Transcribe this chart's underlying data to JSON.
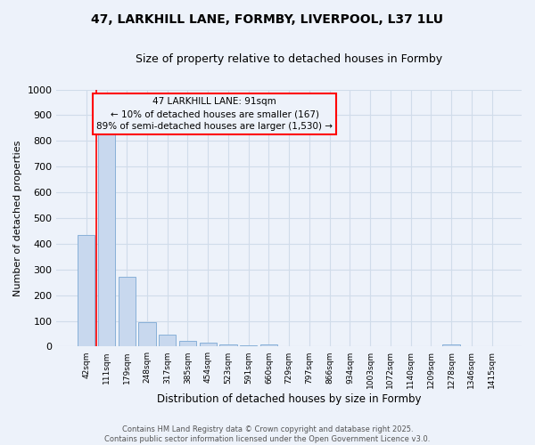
{
  "title1": "47, LARKHILL LANE, FORMBY, LIVERPOOL, L37 1LU",
  "title2": "Size of property relative to detached houses in Formby",
  "xlabel": "Distribution of detached houses by size in Formby",
  "ylabel": "Number of detached properties",
  "annotation_line1": "47 LARKHILL LANE: 91sqm",
  "annotation_line2": "← 10% of detached houses are smaller (167)",
  "annotation_line3": "89% of semi-detached houses are larger (1,530) →",
  "footer1": "Contains HM Land Registry data © Crown copyright and database right 2025.",
  "footer2": "Contains public sector information licensed under the Open Government Licence v3.0.",
  "bar_labels": [
    "42sqm",
    "111sqm",
    "179sqm",
    "248sqm",
    "317sqm",
    "385sqm",
    "454sqm",
    "523sqm",
    "591sqm",
    "660sqm",
    "729sqm",
    "797sqm",
    "866sqm",
    "934sqm",
    "1003sqm",
    "1072sqm",
    "1140sqm",
    "1209sqm",
    "1278sqm",
    "1346sqm",
    "1415sqm"
  ],
  "bar_values": [
    435,
    830,
    270,
    95,
    47,
    22,
    15,
    10,
    5,
    10,
    3,
    2,
    1,
    1,
    1,
    1,
    1,
    1,
    10,
    1,
    1
  ],
  "bar_color": "#c8d8ee",
  "bar_edge_color": "#88b0d8",
  "red_line_x": 0.5,
  "ylim": [
    0,
    1000
  ],
  "yticks": [
    0,
    100,
    200,
    300,
    400,
    500,
    600,
    700,
    800,
    900,
    1000
  ],
  "grid_color": "#d0dcea",
  "background_color": "#edf2fa"
}
